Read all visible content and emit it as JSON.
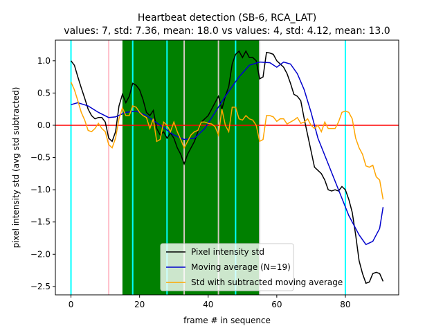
{
  "chart_data": {
    "type": "line",
    "title": "Heartbeat detection (SB-6, RCA_LAT)",
    "subtitle": "values: 7, std: 7.36, mean: 18.0 vs values: 4, std: 4.12, mean: 13.0",
    "x_label": "frame # in sequence",
    "y_label": "pixel intensity std (avg std subtracted)",
    "xlim": [
      -4.55,
      95.55
    ],
    "ylim": [
      -2.63,
      1.32
    ],
    "xticks": [
      0,
      20,
      40,
      60,
      80
    ],
    "yticks": [
      {
        "value": -2.5,
        "label": "−2.5"
      },
      {
        "value": -2,
        "label": "−2.0"
      },
      {
        "value": -1.5,
        "label": "−1.5"
      },
      {
        "value": -1,
        "label": "−1.0"
      },
      {
        "value": -0.5,
        "label": "−0.5"
      },
      {
        "value": 0,
        "label": "0.0"
      },
      {
        "value": 0.5,
        "label": "0.5"
      },
      {
        "value": 1,
        "label": "1.0"
      }
    ],
    "legend": "lower center",
    "span": [
      15,
      55
    ],
    "span_color": "#008000",
    "hline": {
      "value": 0,
      "color": "#ff0000"
    },
    "vlines": [
      {
        "x": 0,
        "color": "#00ffff"
      },
      {
        "x": 11,
        "color": "#ffc0cb"
      },
      {
        "x": 18,
        "color": "#00ffff"
      },
      {
        "x": 28,
        "color": "#00ffff"
      },
      {
        "x": 33,
        "color": "#d3c9c0"
      },
      {
        "x": 43,
        "color": "#d3c9c0"
      },
      {
        "x": 48,
        "color": "#00ffff"
      },
      {
        "x": 55,
        "color": "#d0d0d0"
      },
      {
        "x": 80,
        "color": "#00ffff"
      }
    ],
    "x": [
      0,
      1,
      2,
      3,
      4,
      5,
      6,
      7,
      8,
      9,
      10,
      11,
      12,
      13,
      14,
      15,
      16,
      17,
      18,
      19,
      20,
      21,
      22,
      23,
      24,
      25,
      26,
      27,
      28,
      29,
      30,
      31,
      32,
      33,
      34,
      35,
      36,
      37,
      38,
      39,
      40,
      41,
      42,
      43,
      44,
      45,
      46,
      47,
      48,
      49,
      50,
      51,
      52,
      53,
      54,
      55,
      56,
      57,
      58,
      59,
      60,
      61,
      62,
      63,
      64,
      65,
      66,
      67,
      68,
      69,
      70,
      71,
      72,
      73,
      74,
      75,
      76,
      77,
      78,
      79,
      80,
      81,
      82,
      83,
      84,
      85,
      86,
      87,
      88,
      89,
      90,
      91
    ],
    "series": [
      {
        "name": "Pixel intensity std",
        "color": "#000000",
        "values": [
          1.0,
          0.93,
          0.75,
          0.58,
          0.42,
          0.25,
          0.15,
          0.1,
          0.12,
          0.12,
          0.05,
          -0.2,
          -0.25,
          -0.1,
          0.3,
          0.48,
          0.35,
          0.45,
          0.65,
          0.62,
          0.55,
          0.4,
          0.2,
          0.15,
          0.23,
          -0.05,
          -0.15,
          -0.1,
          -0.2,
          -0.12,
          -0.2,
          -0.35,
          -0.45,
          -0.6,
          -0.45,
          -0.35,
          -0.25,
          -0.1,
          0.05,
          0.1,
          0.15,
          0.25,
          0.35,
          0.45,
          0.25,
          0.45,
          0.6,
          0.95,
          1.1,
          1.15,
          1.05,
          1.15,
          1.05,
          1.05,
          1.0,
          0.72,
          0.75,
          1.13,
          1.12,
          1.1,
          1.0,
          0.95,
          0.9,
          0.8,
          0.65,
          0.48,
          0.45,
          0.38,
          0.1,
          -0.15,
          -0.4,
          -0.65,
          -0.7,
          -0.75,
          -0.85,
          -1.0,
          -1.02,
          -1.0,
          -1.02,
          -0.95,
          -1.0,
          -1.15,
          -1.35,
          -1.7,
          -2.1,
          -2.3,
          -2.45,
          -2.43,
          -2.3,
          -2.28,
          -2.3,
          -2.42
        ]
      },
      {
        "name": "Moving average (N=19)",
        "color": "#0000cc",
        "x": [
          0,
          2,
          5,
          8,
          11,
          13,
          16,
          19,
          22,
          26,
          30,
          33,
          36,
          39,
          42,
          45,
          49,
          52,
          55,
          58,
          60,
          62,
          64,
          66,
          68,
          70,
          72,
          75,
          78,
          81,
          84,
          86,
          88,
          90,
          91
        ],
        "values": [
          0.32,
          0.35,
          0.3,
          0.2,
          0.12,
          0.13,
          0.2,
          0.22,
          0.15,
          0.0,
          -0.15,
          -0.22,
          -0.2,
          -0.05,
          0.2,
          0.45,
          0.75,
          0.93,
          0.98,
          0.97,
          0.9,
          0.98,
          0.95,
          0.8,
          0.55,
          0.2,
          -0.2,
          -0.6,
          -1.0,
          -1.4,
          -1.7,
          -1.85,
          -1.8,
          -1.6,
          -1.27
        ]
      },
      {
        "name": "Std with subtracted moving average",
        "color": "#ffa500",
        "values": [
          0.67,
          0.55,
          0.38,
          0.2,
          0.08,
          -0.08,
          -0.1,
          -0.05,
          0.03,
          -0.05,
          -0.1,
          -0.3,
          -0.35,
          -0.2,
          0.1,
          0.27,
          0.15,
          0.15,
          0.3,
          0.28,
          0.2,
          0.15,
          0.12,
          -0.05,
          0.1,
          -0.25,
          -0.22,
          0.05,
          0.0,
          -0.1,
          0.05,
          -0.1,
          -0.22,
          -0.35,
          -0.25,
          -0.15,
          -0.1,
          -0.08,
          0.05,
          0.05,
          0.03,
          0.02,
          -0.02,
          -0.15,
          0.25,
          0.0,
          -0.1,
          0.28,
          0.28,
          0.1,
          0.08,
          0.15,
          0.1,
          0.08,
          0.0,
          -0.25,
          -0.22,
          0.15,
          0.15,
          0.13,
          0.06,
          0.1,
          0.1,
          0.02,
          0.05,
          0.08,
          0.12,
          0.03,
          0.05,
          0.1,
          0.0,
          -0.05,
          0.0,
          -0.1,
          0.05,
          -0.05,
          -0.05,
          -0.05,
          0.05,
          0.2,
          0.22,
          0.2,
          0.1,
          -0.2,
          -0.35,
          -0.45,
          -0.63,
          -0.65,
          -0.62,
          -0.8,
          -0.85,
          -1.15
        ]
      }
    ]
  }
}
